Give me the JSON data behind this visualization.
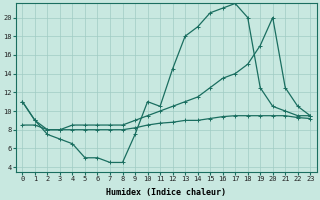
{
  "xlabel": "Humidex (Indice chaleur)",
  "background_color": "#c8e8e0",
  "grid_color": "#a0ccc4",
  "line_color": "#1a6e60",
  "xlim": [
    -0.5,
    23.5
  ],
  "ylim": [
    3.5,
    21.5
  ],
  "yticks": [
    4,
    6,
    8,
    10,
    12,
    14,
    16,
    18,
    20
  ],
  "xticks": [
    0,
    1,
    2,
    3,
    4,
    5,
    6,
    7,
    8,
    9,
    10,
    11,
    12,
    13,
    14,
    15,
    16,
    17,
    18,
    19,
    20,
    21,
    22,
    23
  ],
  "series1_y": [
    11,
    9,
    7.5,
    7,
    6.5,
    5.0,
    5.0,
    4.5,
    4.5,
    7.5,
    11,
    10.5,
    14.5,
    18,
    19,
    20.5,
    21,
    21.5,
    20,
    12.5,
    10.5,
    10,
    9.5,
    9.5
  ],
  "series2_y": [
    11,
    9,
    8.0,
    8.0,
    8.5,
    8.5,
    8.5,
    8.5,
    8.5,
    9.0,
    9.5,
    10.0,
    10.5,
    11.0,
    11.5,
    12.5,
    13.5,
    14.0,
    15.0,
    17.0,
    20.0,
    12.5,
    10.5,
    9.5
  ],
  "series3_y": [
    8.5,
    8.5,
    8.0,
    8.0,
    8.0,
    8.0,
    8.0,
    8.0,
    8.0,
    8.2,
    8.5,
    8.7,
    8.8,
    9.0,
    9.0,
    9.2,
    9.4,
    9.5,
    9.5,
    9.5,
    9.5,
    9.5,
    9.3,
    9.2
  ],
  "xlabel_fontsize": 6,
  "tick_fontsize": 5,
  "linewidth": 0.9,
  "marker_size": 2.5
}
